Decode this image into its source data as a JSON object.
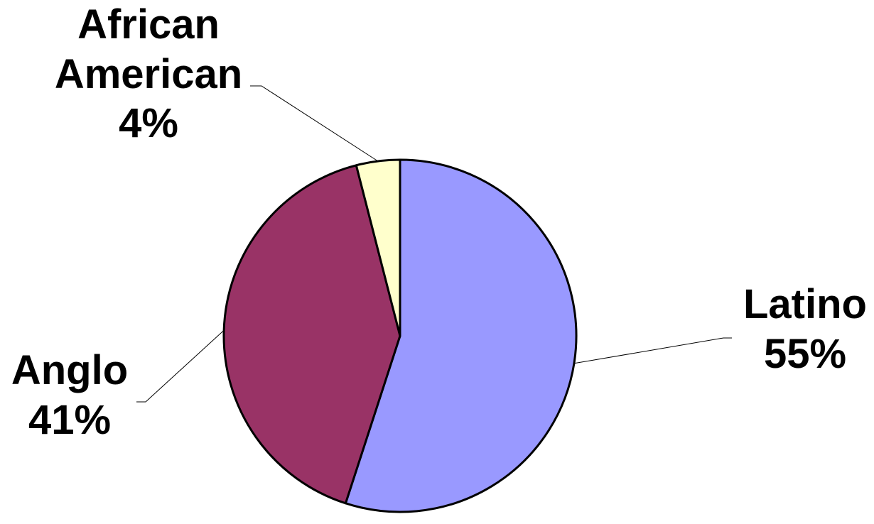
{
  "chart_data": {
    "type": "pie",
    "title": "",
    "slices": [
      {
        "name": "Latino",
        "value": 55,
        "value_label": "55%",
        "label_lines": [
          "Latino",
          "55%"
        ],
        "color": "#9999FF"
      },
      {
        "name": "Anglo",
        "value": 41,
        "value_label": "41%",
        "label_lines": [
          "Anglo",
          "41%"
        ],
        "color": "#993366"
      },
      {
        "name": "African American",
        "value": 4,
        "value_label": "4%",
        "label_lines": [
          "African",
          "American",
          "4%"
        ],
        "color": "#FFFFCC"
      }
    ],
    "start_angle": "12 o'clock",
    "direction": "clockwise",
    "legend": "none"
  }
}
